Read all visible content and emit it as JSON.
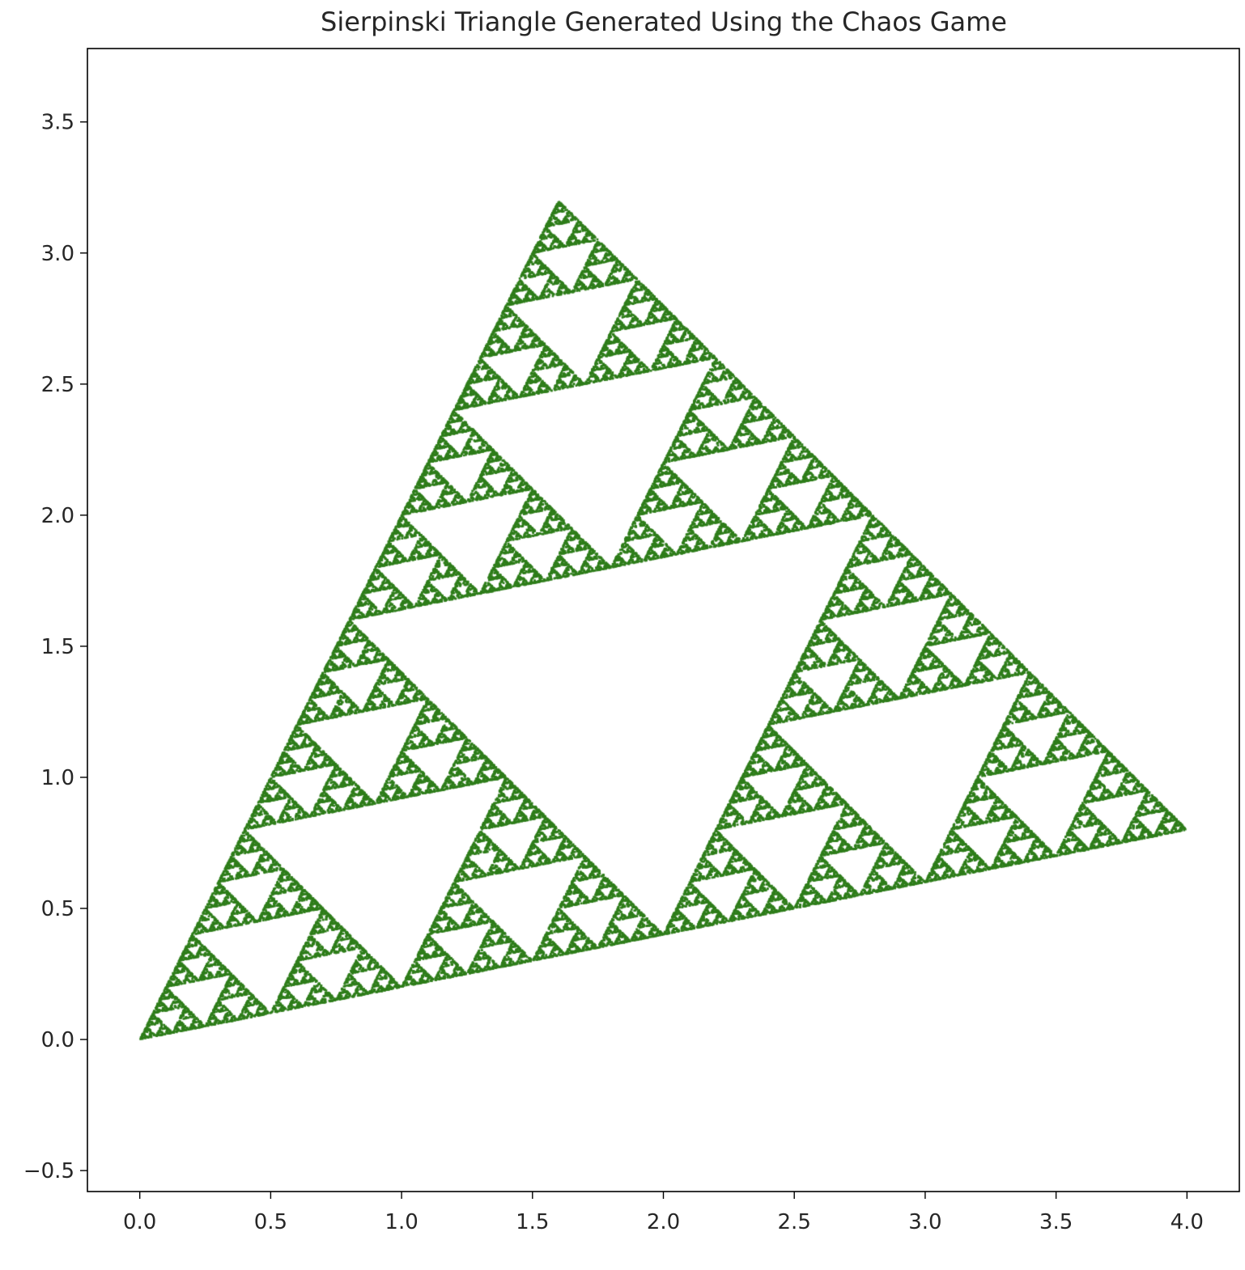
{
  "chart_data": {
    "type": "scatter",
    "title": "Sierpinski Triangle Generated Using the Chaos Game",
    "xlabel": "",
    "ylabel": "",
    "xlim": [
      -0.2,
      4.2
    ],
    "ylim": [
      -0.58,
      3.78
    ],
    "xticks": [
      0.0,
      0.5,
      1.0,
      1.5,
      2.0,
      2.5,
      3.0,
      3.5,
      4.0
    ],
    "xtick_labels": [
      "0.0",
      "0.5",
      "1.0",
      "1.5",
      "2.0",
      "2.5",
      "3.0",
      "3.5",
      "4.0"
    ],
    "yticks": [
      -0.5,
      0.0,
      0.5,
      1.0,
      1.5,
      2.0,
      2.5,
      3.0,
      3.5
    ],
    "ytick_labels": [
      "−0.5",
      "0.0",
      "0.5",
      "1.0",
      "1.5",
      "2.0",
      "2.5",
      "3.0",
      "3.5"
    ],
    "grid": false,
    "legend": false,
    "vertices": [
      [
        0.0,
        0.0
      ],
      [
        1.6,
        3.2
      ],
      [
        4.0,
        0.8
      ]
    ],
    "point_color": "#2e7d1a",
    "series": [
      {
        "method": "chaos-game",
        "vertices": [
          [
            0.0,
            0.0
          ],
          [
            1.6,
            3.2
          ],
          [
            4.0,
            0.8
          ]
        ],
        "ratio": 0.5,
        "points": 60000
      }
    ]
  }
}
